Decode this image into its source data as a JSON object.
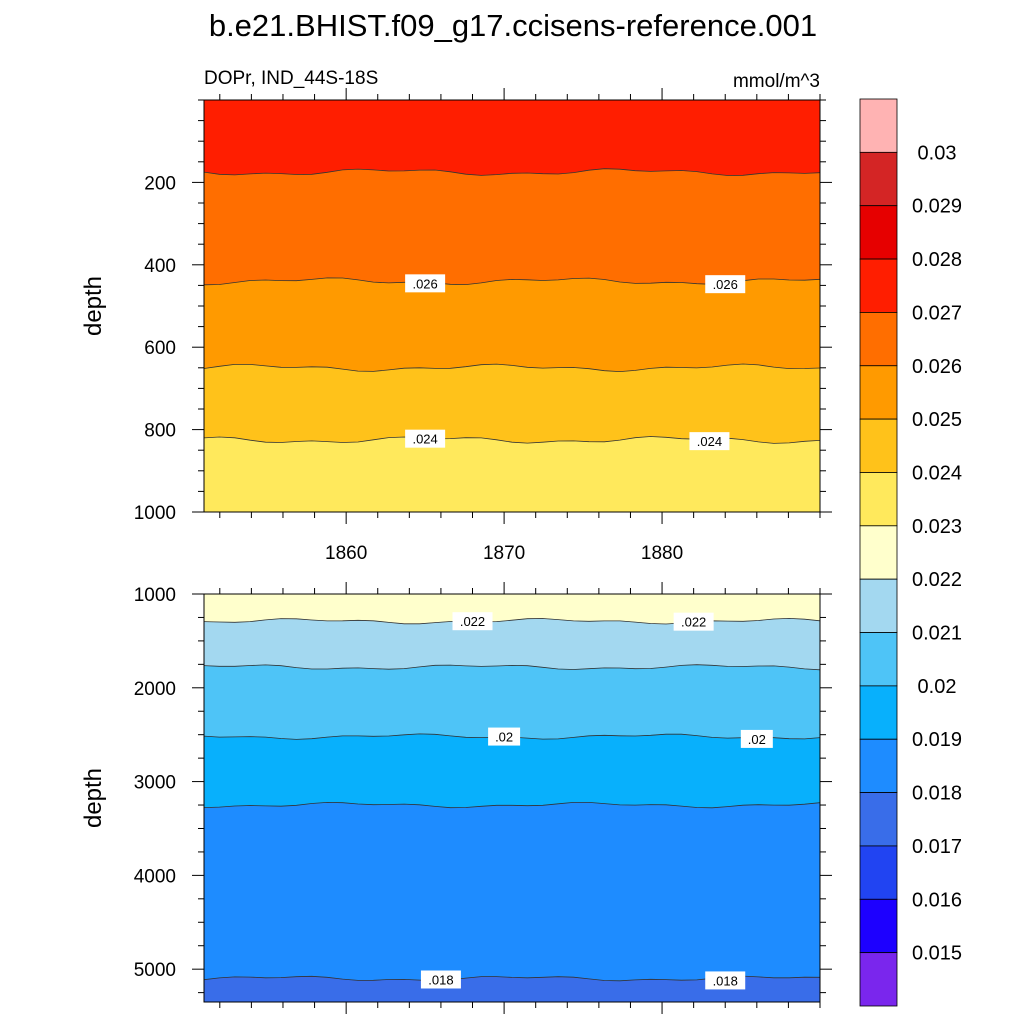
{
  "chart_data": {
    "type": "contour",
    "title": "b.e21.BHIST.f09_g17.ccisens-reference.001",
    "subtitle_left": "DOPr, IND_44S-18S",
    "subtitle_right": "mmol/m^3",
    "x_axis": {
      "ylabel": "",
      "xlim": [
        1851,
        1890
      ],
      "ticks": [
        1860,
        1870,
        1880
      ]
    },
    "panels": [
      {
        "name": "upper",
        "ylabel": "depth",
        "ylim": [
          0,
          1000
        ],
        "yticks": [
          200,
          400,
          600,
          800,
          1000
        ],
        "layers": [
          {
            "color": "#ff1e00",
            "bottom": 175
          },
          {
            "color": "#ff6e00",
            "bottom": 440
          },
          {
            "color": "#ff9a00",
            "bottom": 650
          },
          {
            "color": "#ffc21a",
            "bottom": 825
          },
          {
            "color": "#ffe95c",
            "bottom": 1000
          }
        ],
        "contour_labels": [
          {
            "text": ".026",
            "x": 1865,
            "y": 445
          },
          {
            "text": ".026",
            "x": 1884,
            "y": 447
          },
          {
            "text": ".024",
            "x": 1865,
            "y": 822
          },
          {
            "text": ".024",
            "x": 1883,
            "y": 828
          }
        ]
      },
      {
        "name": "lower",
        "ylabel": "depth",
        "ylim": [
          1000,
          5350
        ],
        "yticks": [
          1000,
          2000,
          3000,
          4000,
          5000
        ],
        "layers": [
          {
            "color": "#ffffcc",
            "bottom": 1290
          },
          {
            "color": "#a3d8f0",
            "bottom": 1780
          },
          {
            "color": "#4ec4f7",
            "bottom": 2520
          },
          {
            "color": "#08b0fc",
            "bottom": 3250
          },
          {
            "color": "#1e8cff",
            "bottom": 5100
          },
          {
            "color": "#396de9",
            "bottom": 5350
          }
        ],
        "contour_labels": [
          {
            "text": ".022",
            "x": 1868,
            "y": 1290
          },
          {
            "text": ".022",
            "x": 1882,
            "y": 1295
          },
          {
            "text": ".02",
            "x": 1870,
            "y": 2520
          },
          {
            "text": ".02",
            "x": 1886,
            "y": 2545
          },
          {
            "text": ".018",
            "x": 1866,
            "y": 5110
          },
          {
            "text": ".018",
            "x": 1884,
            "y": 5120
          }
        ]
      }
    ],
    "colorbar": {
      "colors": [
        "#ffb3b3",
        "#d42525",
        "#e60000",
        "#ff1e00",
        "#ff6e00",
        "#ff9a00",
        "#ffc21a",
        "#ffe95c",
        "#ffffcc",
        "#a3d8f0",
        "#4ec4f7",
        "#08b0fc",
        "#1e8cff",
        "#396de9",
        "#2144f2",
        "#1d00ff",
        "#7a26ed"
      ],
      "labels": [
        "0.03",
        "0.029",
        "0.028",
        "0.027",
        "0.026",
        "0.025",
        "0.024",
        "0.023",
        "0.022",
        "0.021",
        "0.02",
        "0.019",
        "0.018",
        "0.017",
        "0.016",
        "0.015"
      ]
    }
  }
}
